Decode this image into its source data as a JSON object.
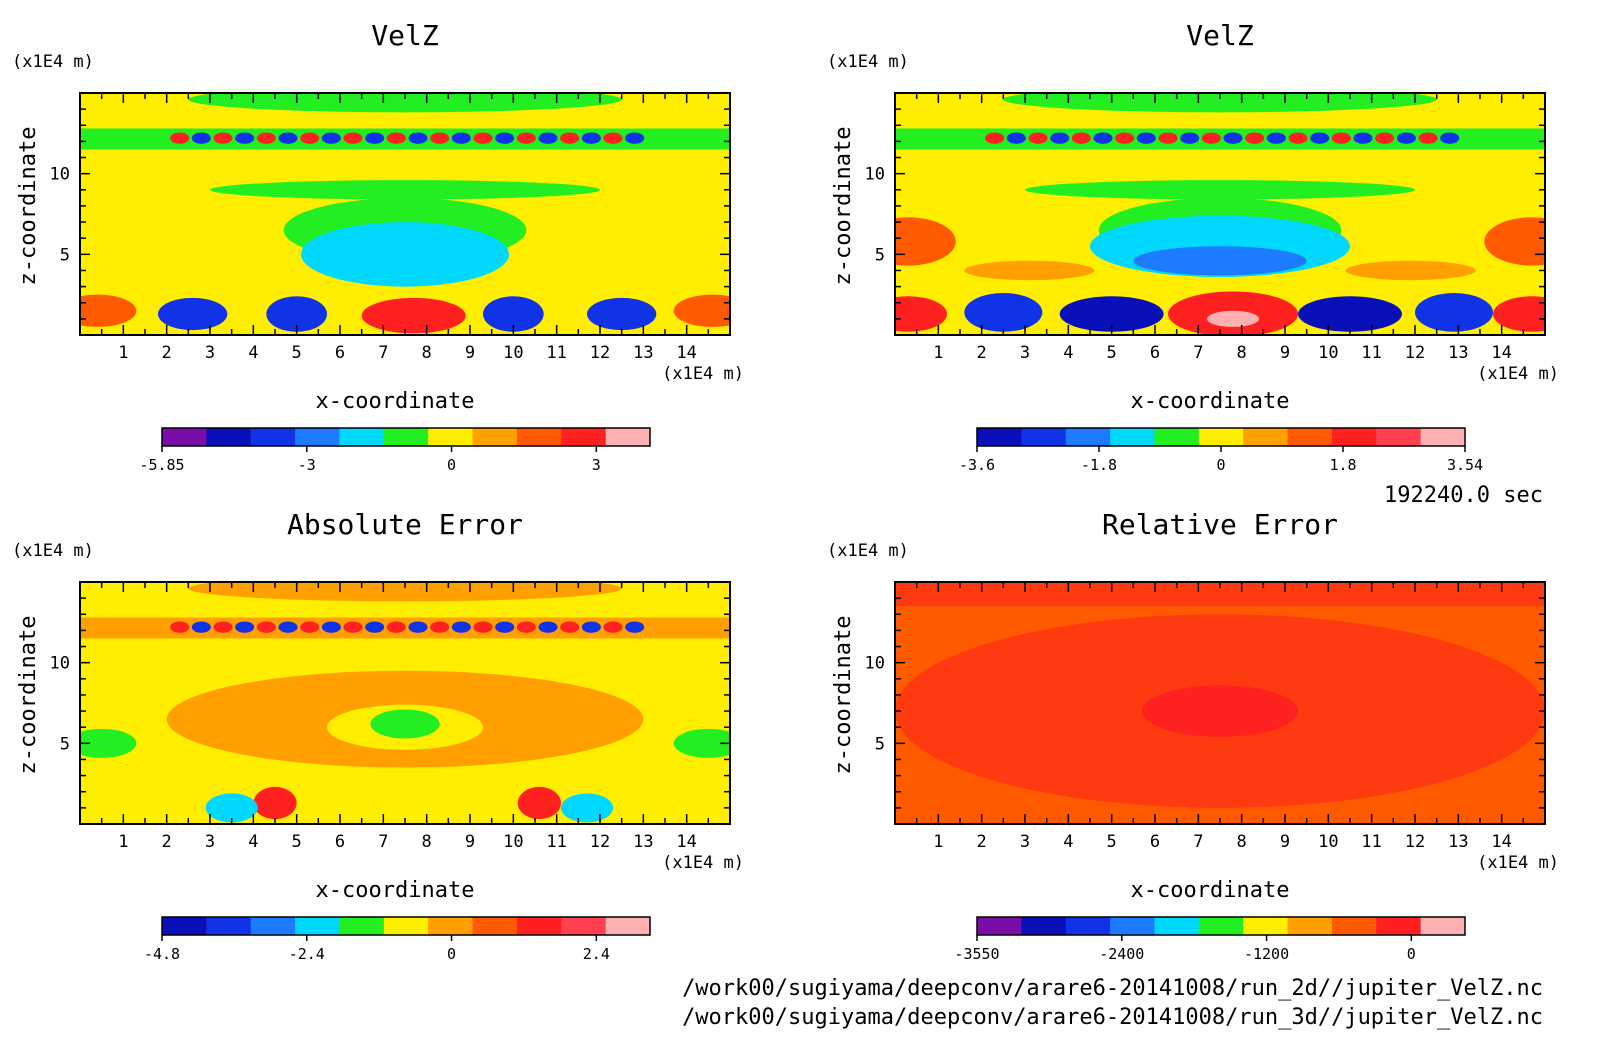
{
  "time_label": "192240.0 sec",
  "files": [
    "/work00/sugiyama/deepconv/arare6-20141008/run_2d//jupiter_VelZ.nc",
    "/work00/sugiyama/deepconv/arare6-20141008/run_3d//jupiter_VelZ.nc"
  ],
  "chart_data": [
    {
      "type": "heatmap",
      "title": "VelZ",
      "xlabel": "x-coordinate",
      "ylabel": "z-coordinate",
      "x_unit": "(x1E4 m)",
      "y_unit": "(x1E4 m)",
      "xlim": [
        0,
        15
      ],
      "ylim": [
        0,
        15
      ],
      "xticks": [
        "1",
        "2",
        "3",
        "4",
        "5",
        "6",
        "7",
        "8",
        "9",
        "10",
        "11",
        "12",
        "13",
        "14"
      ],
      "yticks": [
        "5",
        "10"
      ],
      "colorbar": {
        "colors": [
          "#7a0ca8",
          "#0a10b8",
          "#1133e8",
          "#1c7bff",
          "#00d8ff",
          "#22ee22",
          "#ffee00",
          "#ffa000",
          "#ff5a00",
          "#ff2020",
          "#ffb0b0"
        ],
        "tick_labels": [
          "-5.85",
          "-3",
          "0",
          "3"
        ]
      },
      "background": "#ffee00",
      "features": [
        {
          "x": 7.7,
          "z": 1.2,
          "rx": 1.2,
          "rz": 1.1,
          "color": "#ff2020"
        },
        {
          "x": 2.6,
          "z": 1.3,
          "rx": 0.8,
          "rz": 1.0,
          "color": "#1133e8"
        },
        {
          "x": 5.0,
          "z": 1.3,
          "rx": 0.7,
          "rz": 1.1,
          "color": "#1133e8"
        },
        {
          "x": 10.0,
          "z": 1.3,
          "rx": 0.7,
          "rz": 1.1,
          "color": "#1133e8"
        },
        {
          "x": 12.5,
          "z": 1.3,
          "rx": 0.8,
          "rz": 1.0,
          "color": "#1133e8"
        },
        {
          "x": 7.5,
          "z": 5.0,
          "rx": 2.4,
          "rz": 2.0,
          "color": "#00d8ff"
        },
        {
          "x": 0.4,
          "z": 1.5,
          "rx": 0.9,
          "rz": 1.0,
          "color": "#ff5a00"
        },
        {
          "x": 14.6,
          "z": 1.5,
          "rx": 0.9,
          "rz": 1.0,
          "color": "#ff5a00"
        }
      ]
    },
    {
      "type": "heatmap",
      "title": "VelZ",
      "xlabel": "x-coordinate",
      "ylabel": "z-coordinate",
      "x_unit": "(x1E4 m)",
      "y_unit": "(x1E4 m)",
      "xlim": [
        0,
        15
      ],
      "ylim": [
        0,
        15
      ],
      "xticks": [
        "1",
        "2",
        "3",
        "4",
        "5",
        "6",
        "7",
        "8",
        "9",
        "10",
        "11",
        "12",
        "13",
        "14"
      ],
      "yticks": [
        "5",
        "10"
      ],
      "colorbar": {
        "colors": [
          "#0a10b8",
          "#1133e8",
          "#1c7bff",
          "#00d8ff",
          "#22ee22",
          "#ffee00",
          "#ffa000",
          "#ff5a00",
          "#ff2020",
          "#ff4050",
          "#ffb0b0"
        ],
        "tick_labels": [
          "-3.6",
          "-1.8",
          "0",
          "1.8",
          "3.54"
        ]
      },
      "background": "#ffee00",
      "features": [
        {
          "x": 7.8,
          "z": 1.3,
          "rx": 1.5,
          "rz": 1.4,
          "color": "#ff2020"
        },
        {
          "x": 7.8,
          "z": 1.0,
          "rx": 0.6,
          "rz": 0.5,
          "color": "#ffb0b0"
        },
        {
          "x": 2.5,
          "z": 1.4,
          "rx": 0.9,
          "rz": 1.2,
          "color": "#1133e8"
        },
        {
          "x": 5.0,
          "z": 1.3,
          "rx": 1.2,
          "rz": 1.1,
          "color": "#0a10b8"
        },
        {
          "x": 10.5,
          "z": 1.3,
          "rx": 1.2,
          "rz": 1.1,
          "color": "#0a10b8"
        },
        {
          "x": 12.9,
          "z": 1.4,
          "rx": 0.9,
          "rz": 1.2,
          "color": "#1133e8"
        },
        {
          "x": 7.5,
          "z": 5.5,
          "rx": 3.0,
          "rz": 1.9,
          "color": "#00d8ff"
        },
        {
          "x": 7.5,
          "z": 4.6,
          "rx": 2.0,
          "rz": 0.9,
          "color": "#1c7bff"
        },
        {
          "x": 0.3,
          "z": 5.8,
          "rx": 1.1,
          "rz": 1.5,
          "color": "#ff5a00"
        },
        {
          "x": 14.7,
          "z": 5.8,
          "rx": 1.1,
          "rz": 1.5,
          "color": "#ff5a00"
        },
        {
          "x": 0.3,
          "z": 1.3,
          "rx": 0.9,
          "rz": 1.1,
          "color": "#ff2020"
        },
        {
          "x": 14.7,
          "z": 1.3,
          "rx": 0.9,
          "rz": 1.1,
          "color": "#ff2020"
        },
        {
          "x": 3.1,
          "z": 4.0,
          "rx": 1.5,
          "rz": 0.6,
          "color": "#ffa000"
        },
        {
          "x": 11.9,
          "z": 4.0,
          "rx": 1.5,
          "rz": 0.6,
          "color": "#ffa000"
        }
      ]
    },
    {
      "type": "heatmap",
      "title": "Absolute Error",
      "xlabel": "x-coordinate",
      "ylabel": "z-coordinate",
      "x_unit": "(x1E4 m)",
      "y_unit": "(x1E4 m)",
      "xlim": [
        0,
        15
      ],
      "ylim": [
        0,
        15
      ],
      "xticks": [
        "1",
        "2",
        "3",
        "4",
        "5",
        "6",
        "7",
        "8",
        "9",
        "10",
        "11",
        "12",
        "13",
        "14"
      ],
      "yticks": [
        "5",
        "10"
      ],
      "colorbar": {
        "colors": [
          "#0a10b8",
          "#1133e8",
          "#1c7bff",
          "#00d8ff",
          "#22ee22",
          "#ffee00",
          "#ffa000",
          "#ff5a00",
          "#ff2020",
          "#ff4050",
          "#ffb0b0"
        ],
        "tick_labels": [
          "-4.8",
          "-2.4",
          "0",
          "2.4"
        ]
      },
      "background": "#ffee00",
      "features": [
        {
          "x": 7.5,
          "z": 6.5,
          "rx": 5.5,
          "rz": 3.0,
          "color": "#ffa000"
        },
        {
          "x": 7.5,
          "z": 6.0,
          "rx": 1.8,
          "rz": 1.4,
          "color": "#ffee00"
        },
        {
          "x": 7.5,
          "z": 6.2,
          "rx": 0.8,
          "rz": 0.9,
          "color": "#22ee22"
        },
        {
          "x": 4.5,
          "z": 1.3,
          "rx": 0.5,
          "rz": 1.0,
          "color": "#ff2020"
        },
        {
          "x": 10.6,
          "z": 1.3,
          "rx": 0.5,
          "rz": 1.0,
          "color": "#ff2020"
        },
        {
          "x": 3.5,
          "z": 1.0,
          "rx": 0.6,
          "rz": 0.9,
          "color": "#00d8ff"
        },
        {
          "x": 11.7,
          "z": 1.0,
          "rx": 0.6,
          "rz": 0.9,
          "color": "#00d8ff"
        },
        {
          "x": 0.5,
          "z": 5.0,
          "rx": 0.8,
          "rz": 0.9,
          "color": "#22ee22"
        },
        {
          "x": 14.5,
          "z": 5.0,
          "rx": 0.8,
          "rz": 0.9,
          "color": "#22ee22"
        }
      ]
    },
    {
      "type": "heatmap",
      "title": "Relative Error",
      "xlabel": "x-coordinate",
      "ylabel": "z-coordinate",
      "x_unit": "(x1E4 m)",
      "y_unit": "(x1E4 m)",
      "xlim": [
        0,
        15
      ],
      "ylim": [
        0,
        15
      ],
      "xticks": [
        "1",
        "2",
        "3",
        "4",
        "5",
        "6",
        "7",
        "8",
        "9",
        "10",
        "11",
        "12",
        "13",
        "14"
      ],
      "yticks": [
        "5",
        "10"
      ],
      "colorbar": {
        "colors": [
          "#7a0ca8",
          "#0a10b8",
          "#1133e8",
          "#1c7bff",
          "#00d8ff",
          "#22ee22",
          "#ffee00",
          "#ffa000",
          "#ff5a00",
          "#ff2020",
          "#ffb0b0"
        ],
        "tick_labels": [
          "-3550",
          "-2400",
          "-1200",
          "0"
        ]
      },
      "background": "#ff5a00",
      "features": [
        {
          "x": 7.5,
          "z": 7.0,
          "rx": 7.5,
          "rz": 6.0,
          "color": "#ff3a10"
        },
        {
          "x": 7.5,
          "z": 7.0,
          "rx": 1.8,
          "rz": 1.6,
          "color": "#ff2020"
        }
      ]
    }
  ]
}
